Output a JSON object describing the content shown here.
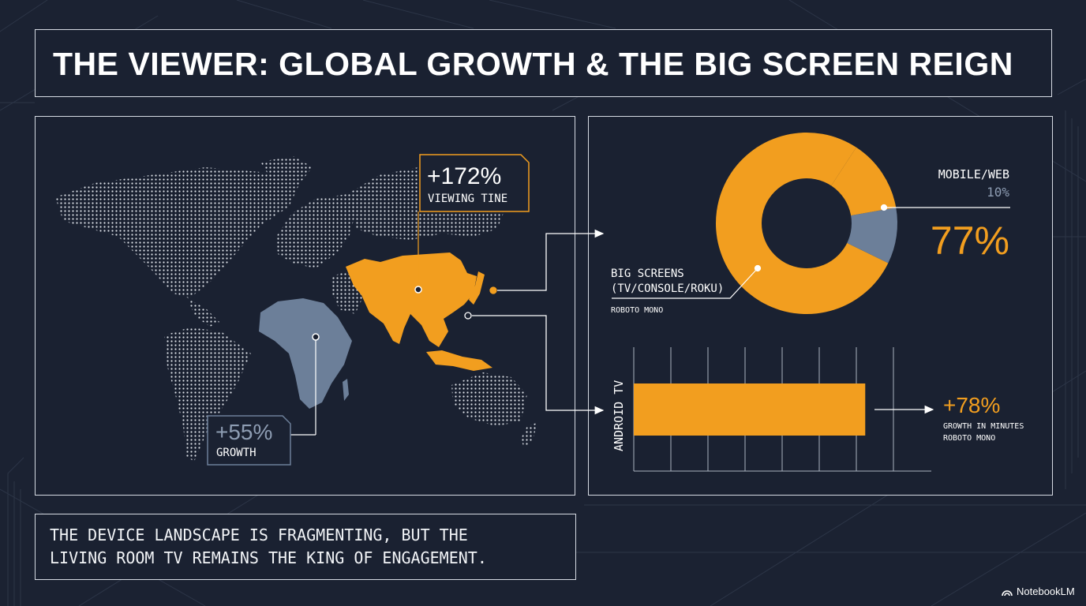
{
  "title": "THE VIEWER: GLOBAL GROWTH & THE BIG SCREEN REIGN",
  "map": {
    "callout_asia": {
      "value": "+172%",
      "label": "VIEWING TINE"
    },
    "callout_africa": {
      "value": "+55%",
      "label": "GROWTH"
    }
  },
  "donut": {
    "big_label_1": "BIG SCREENS",
    "big_label_2": "(TV/CONSOLE/ROKU)",
    "big_note": "ROBOTO MONO",
    "small_label": "MOBILE/WEB",
    "small_value": "10%",
    "big_value": "77%"
  },
  "bar": {
    "axis_label": "ANDROID TV",
    "value_text": "+78%",
    "desc": "GROWTH IN MINUTES",
    "note": "ROBOTO MONO"
  },
  "caption": [
    "THE DEVICE LANDSCAPE IS FRAGMENTING, BUT THE",
    "LIVING ROOM TV REMAINS THE KING OF ENGAGEMENT."
  ],
  "brand": "NotebookLM",
  "colors": {
    "accent": "#f29e1f",
    "secondary": "#6c7f99",
    "bg": "#1b2232"
  },
  "chart_data": [
    {
      "type": "pie",
      "categories": [
        "BIG SCREENS (TV/CONSOLE/ROKU)",
        "MOBILE/WEB"
      ],
      "values": [
        77,
        10
      ]
    },
    {
      "type": "bar",
      "categories": [
        "ANDROID TV"
      ],
      "values": [
        78
      ]
    }
  ]
}
